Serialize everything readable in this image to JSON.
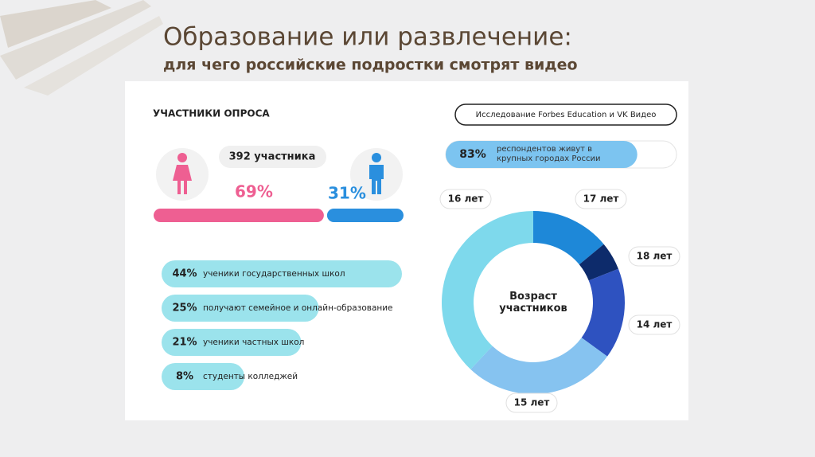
{
  "title": "Образование или развлечение:",
  "subtitle": "для чего российские подростки смотрят видео",
  "panel": {
    "heading": "УЧАСТНИКИ ОПРОСА",
    "source": "Исследование Forbes Education и VK Видео",
    "participants": "392 участника",
    "gender": [
      {
        "value": 69,
        "label": "69%",
        "color": "#ee5f92"
      },
      {
        "value": 31,
        "label": "31%",
        "color": "#2a8fde"
      }
    ],
    "city": {
      "value": 83,
      "label": "83%",
      "text": "респондентов живут в крупных городах России"
    },
    "education": [
      {
        "value": 44,
        "label": "44%",
        "text": "ученики государственных школ"
      },
      {
        "value": 25,
        "label": "25%",
        "text": "получают семейное и онлайн-образование"
      },
      {
        "value": 21,
        "label": "21%",
        "text": "ученики частных школ"
      },
      {
        "value": 8,
        "label": "8%",
        "text": "студенты колледжей"
      }
    ]
  },
  "chart_data": {
    "type": "donut",
    "title": "Возраст участников",
    "categories": [
      "17 лет",
      "18 лет",
      "14 лет",
      "15 лет",
      "16 лет"
    ],
    "values": [
      14,
      5,
      16,
      27,
      38
    ],
    "colors": [
      "#1e88d8",
      "#0d2b6b",
      "#2e52c0",
      "#86c3f0",
      "#7ed9ec"
    ]
  }
}
